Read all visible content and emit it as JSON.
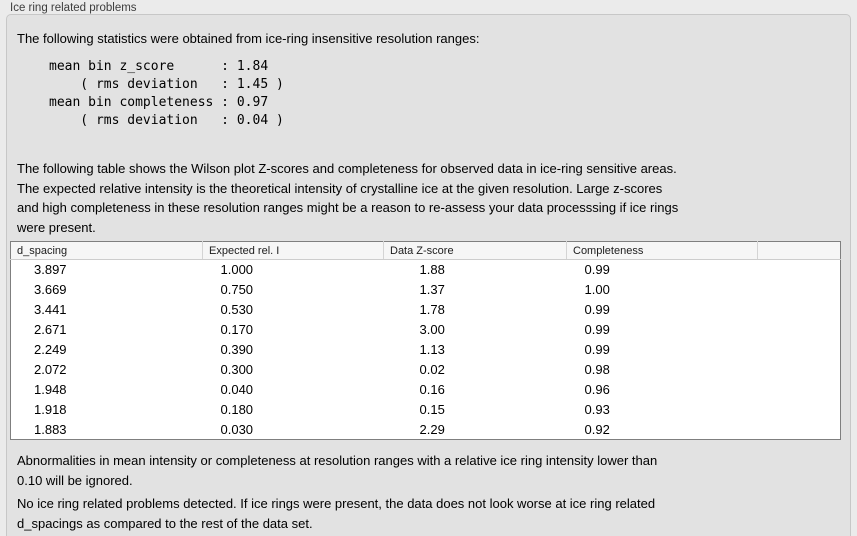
{
  "panel": {
    "title": "Ice ring related problems"
  },
  "intro": {
    "text": "The following statistics were obtained from ice-ring insensitive resolution ranges:",
    "stats_block": "mean bin z_score      : 1.84\n    ( rms deviation   : 1.45 )\nmean bin completeness : 0.97\n    ( rms deviation   : 0.04 )"
  },
  "description": "The following table shows the Wilson plot Z-scores and completeness for observed data in ice-ring sensitive areas.\nThe expected relative intensity is the theoretical intensity of crystalline ice at the given resolution. Large z-scores\nand high completeness in these resolution ranges might be a reason to re-assess your data processsing if ice rings\nwere present.",
  "table": {
    "columns": [
      "d_spacing",
      "Expected rel. I",
      "Data Z-score",
      "Completeness"
    ],
    "rows": [
      [
        "3.897",
        "1.000",
        "1.88",
        "0.99"
      ],
      [
        "3.669",
        "0.750",
        "1.37",
        "1.00"
      ],
      [
        "3.441",
        "0.530",
        "1.78",
        "0.99"
      ],
      [
        "2.671",
        "0.170",
        "3.00",
        "0.99"
      ],
      [
        "2.249",
        "0.390",
        "1.13",
        "0.99"
      ],
      [
        "2.072",
        "0.300",
        "0.02",
        "0.98"
      ],
      [
        "1.948",
        "0.040",
        "0.16",
        "0.96"
      ],
      [
        "1.918",
        "0.180",
        "0.15",
        "0.93"
      ],
      [
        "1.883",
        "0.030",
        "2.29",
        "0.92"
      ]
    ]
  },
  "notes": {
    "ignore_note": "Abnormalities in mean intensity or completeness at resolution ranges with a relative ice ring intensity lower than\n0.10 will be ignored.",
    "conclusion": "No ice ring related problems detected. If ice rings were present, the data does not look worse at ice ring related\nd_spacings as compared to the rest of the data set."
  },
  "colors": {
    "window_background": "#ebebeb",
    "panel_background": "#e2e2e2",
    "panel_border": "#c7c7c7",
    "table_background": "#ffffff",
    "table_border": "#7f7f7f",
    "table_header_background": "#f6f6f6"
  }
}
